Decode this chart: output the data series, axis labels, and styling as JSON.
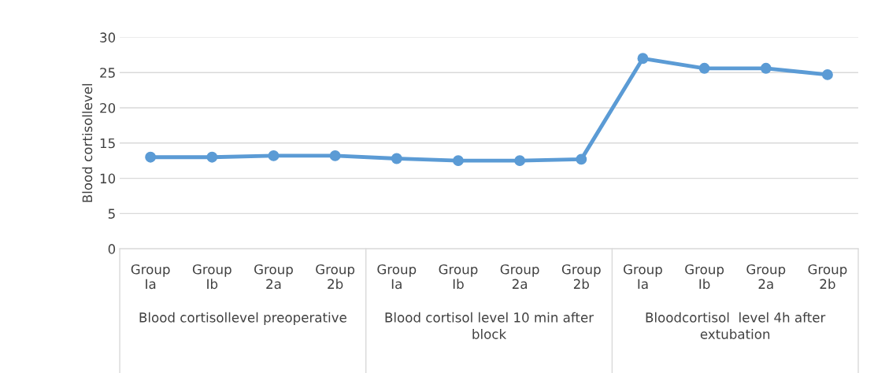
{
  "chart_data": {
    "type": "line",
    "ylabel": "Blood cortisollevel",
    "categories": [
      "Group Ia",
      "Group Ib",
      "Group 2a",
      "Group 2b",
      "Group Ia",
      "Group Ib",
      "Group 2a",
      "Group 2b",
      "Group Ia",
      "Group Ib",
      "Group 2a",
      "Group 2b"
    ],
    "series": [
      {
        "color": "#5b9bd5",
        "values": [
          13.0,
          13.0,
          13.2,
          13.2,
          12.8,
          12.5,
          12.5,
          12.7,
          27.0,
          25.6,
          25.6,
          24.7
        ]
      }
    ],
    "annotations": [
      "Blood cortisollevel preoperative",
      "Blood cortisol level 10 min after block",
      "Bloodcortisol  level 4h after extubation"
    ],
    "ylim": [
      0,
      30
    ],
    "yticks": [
      0,
      5,
      10,
      15,
      20,
      25,
      30
    ],
    "grid": "y",
    "marker": "circle",
    "line_style": "solid"
  }
}
